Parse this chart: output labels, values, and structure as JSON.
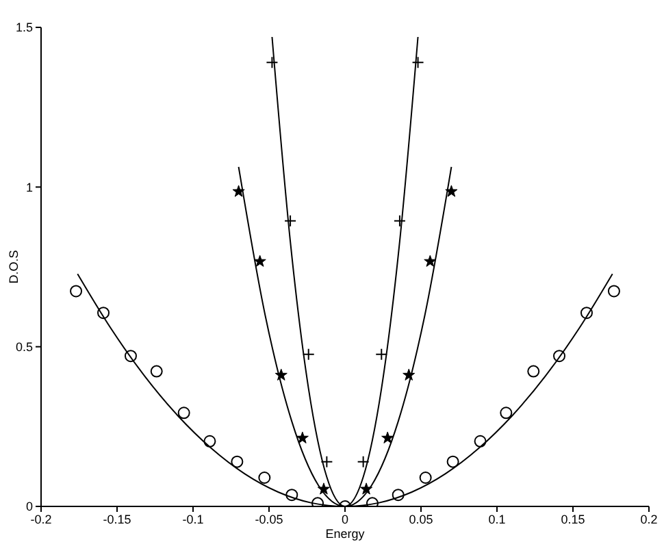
{
  "chart_data": {
    "type": "scatter",
    "xlabel": "Energy",
    "ylabel": "D.O.S",
    "xlim": [
      -0.2,
      0.2
    ],
    "ylim": [
      0,
      1.5
    ],
    "xticks": [
      -0.2,
      -0.15,
      -0.1,
      -0.05,
      0,
      0.05,
      0.1,
      0.15,
      0.2
    ],
    "yticks": [
      0,
      0.5,
      1,
      1.5
    ],
    "grid": false,
    "series": [
      {
        "marker": "circle",
        "color": "#000000",
        "x": [
          -0.177,
          -0.159,
          -0.141,
          -0.124,
          -0.106,
          -0.089,
          -0.071,
          -0.053,
          -0.035,
          -0.018,
          0,
          0.018,
          0.035,
          0.053,
          0.071,
          0.089,
          0.106,
          0.124,
          0.141,
          0.159,
          0.177
        ],
        "values": [
          0.674,
          0.606,
          0.471,
          0.423,
          0.293,
          0.204,
          0.14,
          0.09,
          0.036,
          0.01,
          0,
          0.01,
          0.036,
          0.09,
          0.14,
          0.204,
          0.293,
          0.423,
          0.471,
          0.606,
          0.674
        ]
      },
      {
        "marker": "star",
        "color": "#000000",
        "x": [
          -0.07,
          -0.056,
          -0.042,
          -0.028,
          -0.014,
          0.014,
          0.028,
          0.042,
          0.056,
          0.07
        ],
        "values": [
          0.986,
          0.767,
          0.411,
          0.214,
          0.054,
          0.054,
          0.214,
          0.411,
          0.767,
          0.986
        ]
      },
      {
        "marker": "cross",
        "color": "#000000",
        "x": [
          -0.048,
          -0.036,
          -0.024,
          -0.012,
          0.012,
          0.024,
          0.036,
          0.048
        ],
        "values": [
          1.39,
          0.894,
          0.476,
          0.14,
          0.14,
          0.476,
          0.894,
          1.39
        ]
      },
      {
        "type": "line",
        "marker": "none",
        "color": "#000000",
        "x": [
          -0.176,
          -0.154,
          -0.132,
          -0.11,
          -0.088,
          -0.066,
          -0.044,
          -0.022,
          0,
          0.022,
          0.044,
          0.066,
          0.088,
          0.11,
          0.132,
          0.154,
          0.176
        ],
        "values": [
          0.728,
          0.557,
          0.409,
          0.284,
          0.182,
          0.102,
          0.045,
          0.011,
          0,
          0.011,
          0.045,
          0.102,
          0.182,
          0.284,
          0.409,
          0.557,
          0.728
        ]
      },
      {
        "type": "line",
        "marker": "none",
        "color": "#000000",
        "x": [
          -0.07,
          -0.0525,
          -0.035,
          -0.0175,
          0,
          0.0175,
          0.035,
          0.0525,
          0.07
        ],
        "values": [
          1.063,
          0.598,
          0.266,
          0.066,
          0,
          0.066,
          0.266,
          0.598,
          1.063
        ]
      },
      {
        "type": "line",
        "marker": "none",
        "color": "#000000",
        "x": [
          -0.048,
          -0.036,
          -0.024,
          -0.012,
          0,
          0.012,
          0.024,
          0.036,
          0.048
        ],
        "values": [
          1.47,
          0.83,
          0.369,
          0.092,
          0,
          0.092,
          0.369,
          0.83,
          1.47
        ]
      }
    ]
  }
}
